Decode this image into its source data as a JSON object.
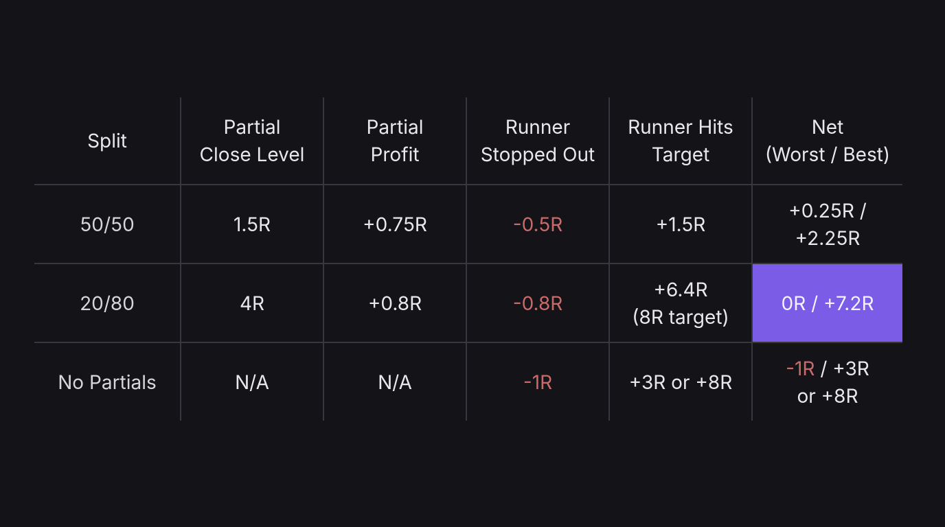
{
  "table": {
    "header": [
      {
        "lines": [
          [
            {
              "text": "Split"
            }
          ]
        ]
      },
      {
        "lines": [
          [
            {
              "text": "Partial"
            }
          ],
          [
            {
              "text": "Close Level"
            }
          ]
        ]
      },
      {
        "lines": [
          [
            {
              "text": "Partial"
            }
          ],
          [
            {
              "text": "Profit"
            }
          ]
        ]
      },
      {
        "lines": [
          [
            {
              "text": "Runner"
            }
          ],
          [
            {
              "text": "Stopped Out"
            }
          ]
        ]
      },
      {
        "lines": [
          [
            {
              "text": "Runner Hits"
            }
          ],
          [
            {
              "text": "Target"
            }
          ]
        ]
      },
      {
        "lines": [
          [
            {
              "text": "Net"
            }
          ],
          [
            {
              "text": "(Worst / Best)"
            }
          ]
        ]
      }
    ],
    "rows": [
      [
        {
          "lines": [
            [
              {
                "text": "50/50"
              }
            ]
          ]
        },
        {
          "lines": [
            [
              {
                "text": "1.5R"
              }
            ]
          ]
        },
        {
          "lines": [
            [
              {
                "text": "+0.75R"
              }
            ]
          ]
        },
        {
          "lines": [
            [
              {
                "text": "-0.5R",
                "tone": "negative"
              }
            ]
          ]
        },
        {
          "lines": [
            [
              {
                "text": "+1.5R"
              }
            ]
          ]
        },
        {
          "lines": [
            [
              {
                "text": "+0.25R /"
              }
            ],
            [
              {
                "text": "+2.25R"
              }
            ]
          ]
        }
      ],
      [
        {
          "lines": [
            [
              {
                "text": "20/80"
              }
            ]
          ]
        },
        {
          "lines": [
            [
              {
                "text": "4R"
              }
            ]
          ]
        },
        {
          "lines": [
            [
              {
                "text": "+0.8R"
              }
            ]
          ]
        },
        {
          "lines": [
            [
              {
                "text": "-0.8R",
                "tone": "negative"
              }
            ]
          ]
        },
        {
          "lines": [
            [
              {
                "text": "+6.4R"
              }
            ],
            [
              {
                "text": "(8R target)"
              }
            ]
          ]
        },
        {
          "lines": [
            [
              {
                "text": "0R / +7.2R"
              }
            ]
          ],
          "tone": "highlight"
        }
      ],
      [
        {
          "lines": [
            [
              {
                "text": "No Partials"
              }
            ]
          ]
        },
        {
          "lines": [
            [
              {
                "text": "N/A"
              }
            ]
          ]
        },
        {
          "lines": [
            [
              {
                "text": "N/A"
              }
            ]
          ]
        },
        {
          "lines": [
            [
              {
                "text": "-1R",
                "tone": "negative"
              }
            ]
          ]
        },
        {
          "lines": [
            [
              {
                "text": "+3R or +8R"
              }
            ]
          ]
        },
        {
          "lines": [
            [
              {
                "text": "-1R",
                "tone": "negative"
              },
              {
                "text": " / +3R"
              }
            ],
            [
              {
                "text": "or +8R"
              }
            ]
          ]
        }
      ]
    ]
  }
}
